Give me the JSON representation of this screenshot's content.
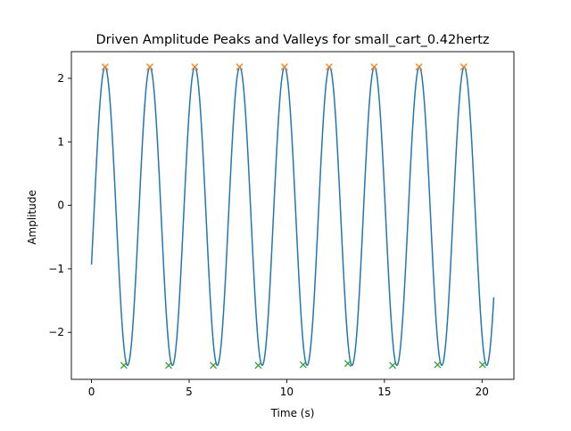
{
  "chart_data": {
    "type": "line",
    "title": "Driven Amplitude Peaks and Valleys for small_cart_0.42hertz",
    "xlabel": "Time (s)",
    "ylabel": "Amplitude",
    "xlim": [
      -1.03,
      21.63
    ],
    "ylim": [
      -2.74,
      2.42
    ],
    "x_ticks": [
      0,
      5,
      10,
      15,
      20
    ],
    "y_ticks": [
      -2,
      -1,
      0,
      1,
      2
    ],
    "x_tick_labels": [
      "0",
      "5",
      "10",
      "15",
      "20"
    ],
    "y_tick_labels": [
      "−2",
      "−1",
      "0",
      "1",
      "2"
    ],
    "grid": false,
    "legend": "none",
    "signal": {
      "frequency_hz": 0.435,
      "offset": -0.17,
      "amplitude": 2.35,
      "phase_rad": -0.33,
      "t_start": 0.0,
      "t_end": 20.6,
      "color": "#1f77b4"
    },
    "series": [
      {
        "marker": "x",
        "color": "#ff7f0e",
        "points": [
          [
            0.7,
            2.18
          ],
          [
            2.99,
            2.18
          ],
          [
            5.29,
            2.18
          ],
          [
            7.58,
            2.18
          ],
          [
            9.88,
            2.18
          ],
          [
            12.17,
            2.18
          ],
          [
            14.47,
            2.18
          ],
          [
            16.77,
            2.18
          ],
          [
            19.06,
            2.18
          ]
        ]
      },
      {
        "marker": "x",
        "color": "#2ca02c",
        "points": [
          [
            1.66,
            -2.52
          ],
          [
            3.95,
            -2.52
          ],
          [
            6.24,
            -2.52
          ],
          [
            8.54,
            -2.52
          ],
          [
            10.84,
            -2.51
          ],
          [
            13.13,
            -2.49
          ],
          [
            15.42,
            -2.52
          ],
          [
            17.72,
            -2.51
          ],
          [
            20.02,
            -2.51
          ]
        ]
      }
    ]
  }
}
